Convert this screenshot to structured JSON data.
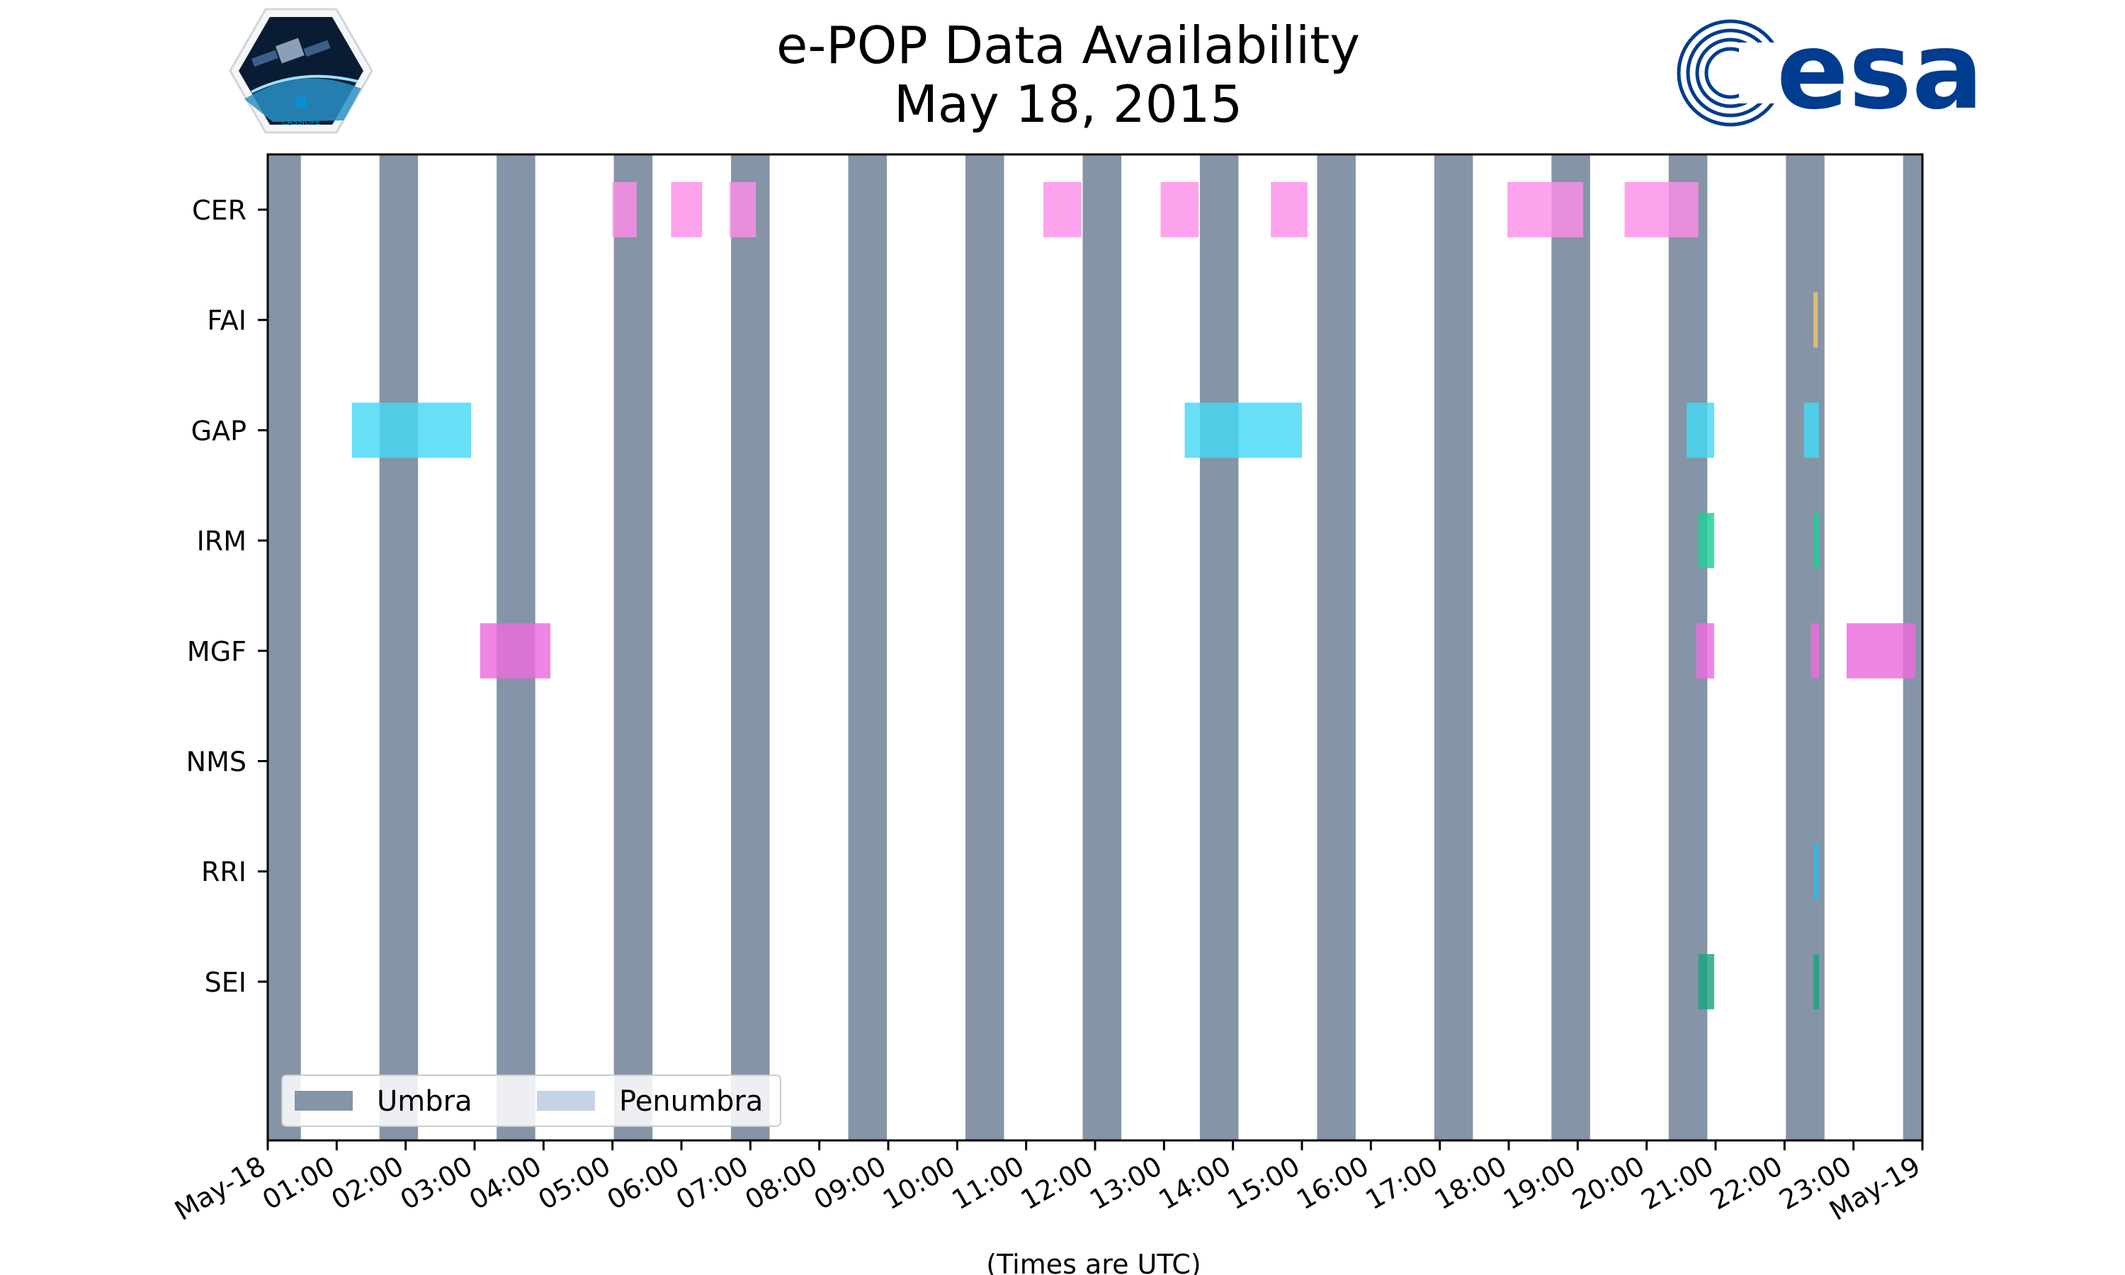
{
  "chart_data": {
    "type": "timeline",
    "title": "e-POP Data Availability",
    "subtitle": "May 18, 2015",
    "xlabel": "(Times are UTC)",
    "x_range_hours": [
      0,
      24
    ],
    "x_tick_labels": [
      "May-18",
      "01:00",
      "02:00",
      "03:00",
      "04:00",
      "05:00",
      "06:00",
      "07:00",
      "08:00",
      "09:00",
      "10:00",
      "11:00",
      "12:00",
      "13:00",
      "14:00",
      "15:00",
      "16:00",
      "17:00",
      "18:00",
      "19:00",
      "20:00",
      "21:00",
      "22:00",
      "23:00",
      "May-19"
    ],
    "instruments": [
      "CER",
      "FAI",
      "GAP",
      "IRM",
      "MGF",
      "NMS",
      "RRI",
      "SEI"
    ],
    "legend": [
      {
        "label": "Umbra",
        "color": "#8594a6"
      },
      {
        "label": "Penumbra",
        "color": "#c5d3e4"
      }
    ],
    "umbra_intervals_hours": [
      [
        0.0,
        0.48
      ],
      [
        1.62,
        2.18
      ],
      [
        3.32,
        3.88
      ],
      [
        5.02,
        5.58
      ],
      [
        6.72,
        7.28
      ],
      [
        8.42,
        8.98
      ],
      [
        10.12,
        10.68
      ],
      [
        11.82,
        12.38
      ],
      [
        13.52,
        14.08
      ],
      [
        15.22,
        15.78
      ],
      [
        16.92,
        17.48
      ],
      [
        18.62,
        19.18
      ],
      [
        20.32,
        20.88
      ],
      [
        22.02,
        22.58
      ],
      [
        23.72,
        24.0
      ]
    ],
    "series": [
      {
        "name": "CER",
        "color": "#fc8ee8",
        "intervals": [
          [
            5.0,
            5.35
          ],
          [
            5.85,
            6.3
          ],
          [
            6.7,
            7.08
          ],
          [
            11.25,
            11.8
          ],
          [
            12.95,
            13.5
          ],
          [
            14.55,
            15.08
          ],
          [
            17.98,
            19.08
          ],
          [
            19.68,
            20.75
          ]
        ]
      },
      {
        "name": "FAI",
        "color": "#f2c46d",
        "intervals": [
          [
            22.42,
            22.48
          ]
        ]
      },
      {
        "name": "GAP",
        "color": "#45d8f5",
        "intervals": [
          [
            1.22,
            2.95
          ],
          [
            13.3,
            15.0
          ],
          [
            20.58,
            20.98
          ],
          [
            22.28,
            22.5
          ]
        ]
      },
      {
        "name": "IRM",
        "color": "#1fcf96",
        "intervals": [
          [
            20.75,
            20.98
          ],
          [
            22.42,
            22.5
          ]
        ]
      },
      {
        "name": "MGF",
        "color": "#eb6bde",
        "intervals": [
          [
            3.08,
            4.1
          ],
          [
            20.72,
            20.98
          ],
          [
            22.38,
            22.5
          ],
          [
            22.9,
            23.9
          ]
        ]
      },
      {
        "name": "NMS",
        "color": "#999999",
        "intervals": []
      },
      {
        "name": "RRI",
        "color": "#35b6e3",
        "intervals": [
          [
            22.42,
            22.5
          ]
        ]
      },
      {
        "name": "SEI",
        "color": "#1aa37f",
        "intervals": [
          [
            20.75,
            20.98
          ],
          [
            22.42,
            22.5
          ]
        ]
      }
    ]
  },
  "logos": {
    "cassiope_badge_text": "CASSIOPE"
  }
}
